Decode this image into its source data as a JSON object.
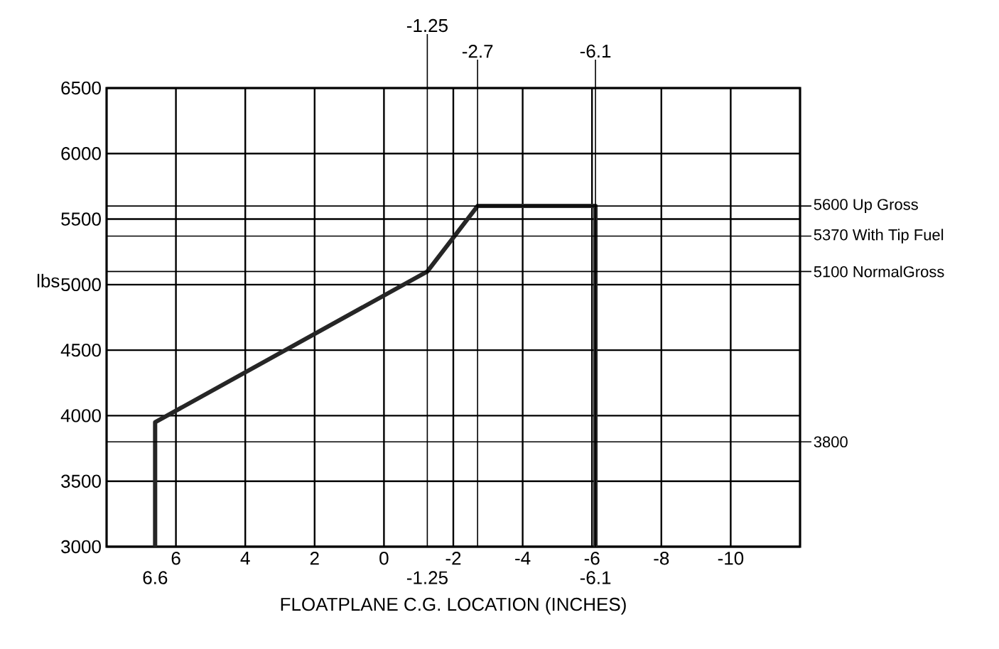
{
  "chart_data": {
    "type": "line",
    "xlabel": "FLOATPLANE C.G. LOCATION (INCHES)",
    "ylabel": "lbs",
    "xlim": [
      8,
      -12
    ],
    "ylim": [
      3000,
      6500
    ],
    "xticks": [
      6,
      4,
      2,
      0,
      -2,
      -4,
      -6,
      -8,
      -10
    ],
    "yticks": [
      3000,
      3500,
      4000,
      4500,
      5000,
      5500,
      6000,
      6500
    ],
    "grid": true,
    "marker": "none",
    "line_style": "solid",
    "series": [
      {
        "color": "#262626",
        "x": [
          6.6,
          6.6,
          -1.25,
          -2.7,
          -6.1,
          -6.1
        ],
        "values": [
          3000,
          3950,
          5100,
          5600,
          5600,
          3000
        ]
      }
    ],
    "ref_lines": [
      {
        "axis": "x",
        "value": -1.25,
        "label": "-1.25"
      },
      {
        "axis": "x",
        "value": -2.7,
        "label": "-2.7"
      },
      {
        "axis": "x",
        "value": -6.1,
        "label": "-6.1"
      },
      {
        "axis": "y",
        "value": 5600,
        "label": "5600 Up Gross"
      },
      {
        "axis": "y",
        "value": 5370,
        "label": "5370 With Tip Fuel"
      },
      {
        "axis": "y",
        "value": 5100,
        "label": "5100 NormalGross"
      },
      {
        "axis": "y",
        "value": 3800,
        "label": "3800"
      }
    ],
    "annotations": [
      {
        "text": "6.6",
        "x": 6.6,
        "y": 3000
      },
      {
        "text": "-1.25",
        "x": -1.25,
        "y": 3000
      },
      {
        "text": "-6.1",
        "x": -6.1,
        "y": 3000
      }
    ]
  }
}
